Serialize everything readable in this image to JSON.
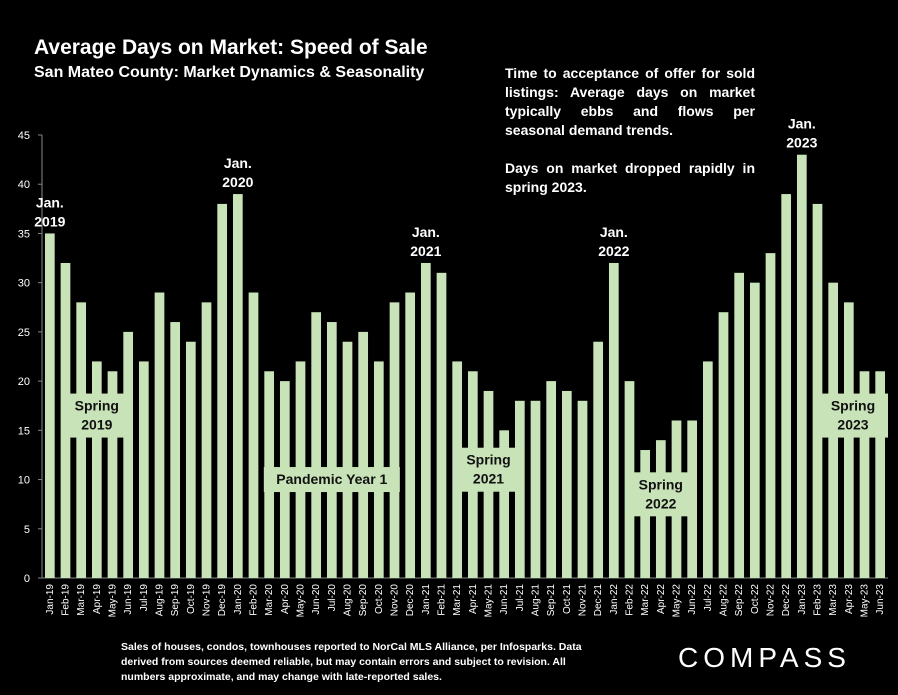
{
  "header": {
    "title": "Average Days on Market:  Speed of Sale",
    "subtitle": "San Mateo County: Market Dynamics & Seasonality"
  },
  "note": {
    "paragraph1": "Time to acceptance of offer for sold listings: Average days on market typically ebbs and flows per seasonal demand trends.",
    "paragraph2": "Days on market dropped rapidly in spring 2023."
  },
  "footer": {
    "text": "Sales of houses, condos, townhouses reported to NorCal MLS Alliance, per Infosparks. Data derived from sources deemed reliable, but may contain errors and subject to revision. All numbers approximate, and may change with late-reported sales."
  },
  "brand": {
    "logo": "COMPASS"
  },
  "chart_data": {
    "type": "bar",
    "title": "Average Days on Market:  Speed of Sale",
    "subtitle": "San Mateo County: Market Dynamics & Seasonality",
    "xlabel": "",
    "ylabel": "",
    "ylim": [
      0,
      45
    ],
    "yticks": [
      0,
      5,
      10,
      15,
      20,
      25,
      30,
      35,
      40,
      45
    ],
    "grid": false,
    "bar_color": "#c8e3b8",
    "background": "#000000",
    "categories": [
      "Jan-19",
      "Feb-19",
      "Mar-19",
      "Apr-19",
      "May-19",
      "Jun-19",
      "Jul-19",
      "Aug-19",
      "Sep-19",
      "Oct-19",
      "Nov-19",
      "Dec-19",
      "Jan-20",
      "Feb-20",
      "Mar-20",
      "Apr-20",
      "May-20",
      "Jun-20",
      "Jul-20",
      "Aug-20",
      "Sep-20",
      "Oct-20",
      "Nov-20",
      "Dec-20",
      "Jan-21",
      "Feb-21",
      "Mar-21",
      "Apr-21",
      "May-21",
      "Jun-21",
      "Jul-21",
      "Aug-21",
      "Sep-21",
      "Oct-21",
      "Nov-21",
      "Dec-21",
      "Jan-22",
      "Feb-22",
      "Mar-22",
      "Apr-22",
      "May-22",
      "Jun-22",
      "Jul-22",
      "Aug-22",
      "Sep-22",
      "Oct-22",
      "Nov-22",
      "Dec-22",
      "Jan-23",
      "Feb-23",
      "Mar-23",
      "Apr-23",
      "May-23",
      "Jun-23"
    ],
    "values": [
      35,
      32,
      28,
      22,
      21,
      25,
      22,
      29,
      26,
      24,
      28,
      38,
      39,
      29,
      21,
      20,
      22,
      27,
      26,
      24,
      25,
      22,
      28,
      29,
      32,
      31,
      22,
      21,
      19,
      15,
      18,
      18,
      20,
      19,
      18,
      24,
      32,
      20,
      13,
      14,
      16,
      16,
      22,
      27,
      31,
      30,
      33,
      39,
      43,
      38,
      30,
      28,
      21,
      21
    ],
    "annotations": [
      {
        "text": "Jan. 2019",
        "category": "Jan-19",
        "value": 35
      },
      {
        "text": "Jan. 2020",
        "category": "Jan-20",
        "value": 39
      },
      {
        "text": "Jan. 2021",
        "category": "Jan-21",
        "value": 32
      },
      {
        "text": "Jan. 2022",
        "category": "Jan-22",
        "value": 32
      },
      {
        "text": "Jan. 2023",
        "category": "Jan-23",
        "value": 43
      },
      {
        "text": "Spring 2019",
        "category": "Apr-19",
        "value": 16.5
      },
      {
        "text": "Pandemic Year 1",
        "category": "Jul-20",
        "value": 10
      },
      {
        "text": "Spring 2021",
        "category": "May-21",
        "value": 11
      },
      {
        "text": "Spring 2022",
        "category": "Apr-22",
        "value": 8.5
      },
      {
        "text": "Spring 2023",
        "category": "May-23",
        "value": 16.5
      }
    ]
  }
}
